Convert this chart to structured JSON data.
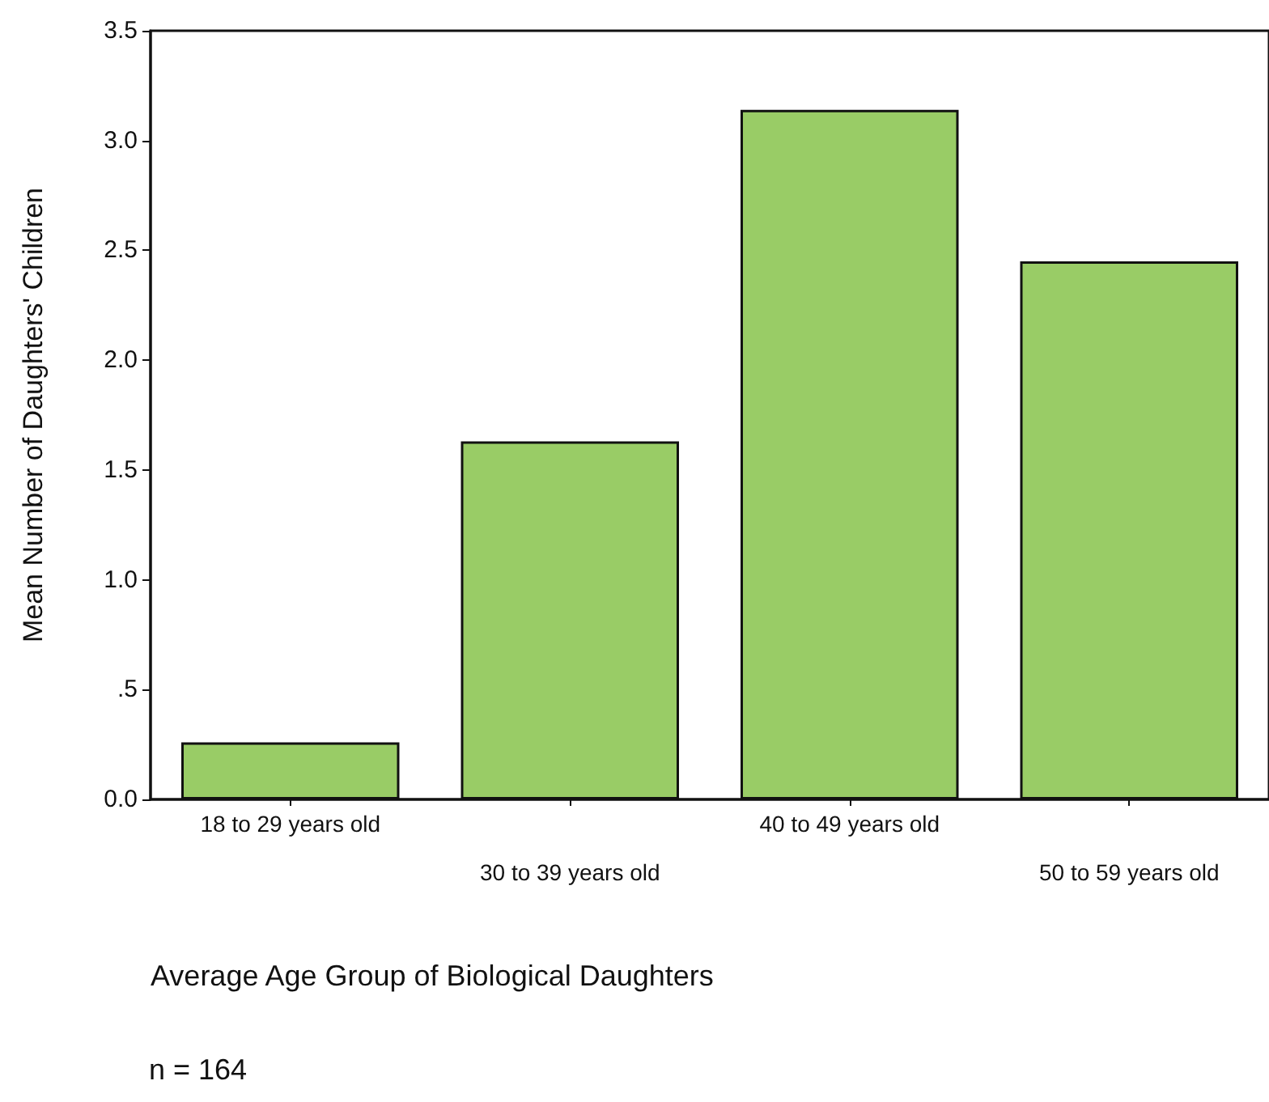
{
  "chart_data": {
    "type": "bar",
    "categories": [
      "18 to 29 years old",
      "30 to 39 years old",
      "40 to 49 years old",
      "50 to 59 years old"
    ],
    "values": [
      0.26,
      1.63,
      3.14,
      2.45
    ],
    "color": "#99cc66",
    "xlabel": "Average Age Group of Biological Daughters",
    "ylabel": "Mean Number of Daughters' Children",
    "ylim": [
      0,
      3.5
    ],
    "yticks": [
      {
        "value": 0,
        "label": "0.0"
      },
      {
        "value": 0.5,
        "label": ".5"
      },
      {
        "value": 1,
        "label": "1.0"
      },
      {
        "value": 1.5,
        "label": "1.5"
      },
      {
        "value": 2,
        "label": "2.0"
      },
      {
        "value": 2.5,
        "label": "2.5"
      },
      {
        "value": 3,
        "label": "3.0"
      },
      {
        "value": 3.5,
        "label": "3.5"
      }
    ],
    "annotations": [
      "n = 164"
    ],
    "grid": false
  }
}
